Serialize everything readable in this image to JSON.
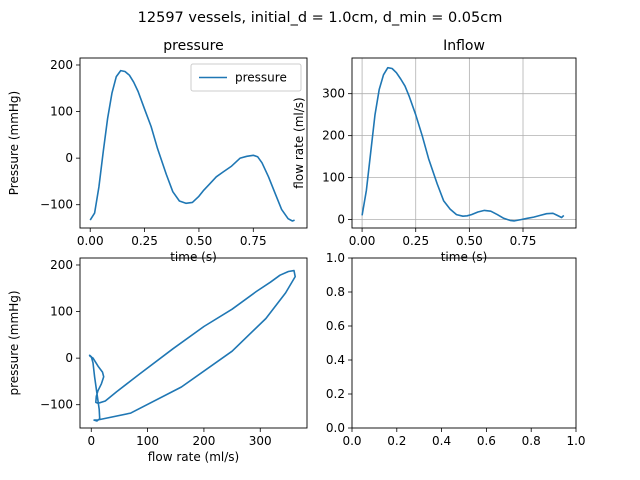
{
  "figure": {
    "suptitle": "12597 vessels, initial_d = 1.0cm, d_min = 0.05cm",
    "line_color": "#1f77b4",
    "grid_color": "#b0b0b0"
  },
  "chart_data": [
    {
      "type": "line",
      "title": "pressure",
      "xlabel": "time (s)",
      "ylabel": "Pressure (mmHg)",
      "xlim": [
        -0.047,
        0.997
      ],
      "ylim": [
        -150,
        215
      ],
      "xticks": [
        0.0,
        0.25,
        0.5,
        0.75
      ],
      "xtick_labels": [
        "0.00",
        "0.25",
        "0.50",
        "0.75"
      ],
      "yticks": [
        -100,
        0,
        100,
        200
      ],
      "ytick_labels": [
        "−100",
        "0",
        "100",
        "200"
      ],
      "grid": false,
      "legend": "upper right",
      "series": [
        {
          "name": "pressure",
          "x": [
            0.0,
            0.02,
            0.04,
            0.06,
            0.08,
            0.1,
            0.12,
            0.14,
            0.16,
            0.18,
            0.2,
            0.22,
            0.25,
            0.28,
            0.31,
            0.35,
            0.38,
            0.41,
            0.44,
            0.47,
            0.5,
            0.52,
            0.55,
            0.58,
            0.61,
            0.65,
            0.69,
            0.72,
            0.75,
            0.77,
            0.79,
            0.82,
            0.85,
            0.88,
            0.91,
            0.93,
            0.94
          ],
          "y": [
            -133,
            -118,
            -62,
            15,
            85,
            140,
            175,
            188,
            186,
            178,
            163,
            143,
            105,
            68,
            20,
            -35,
            -72,
            -92,
            -97,
            -95,
            -82,
            -70,
            -55,
            -40,
            -30,
            -17,
            0,
            4,
            6,
            3,
            -10,
            -40,
            -75,
            -110,
            -130,
            -135,
            -133
          ]
        }
      ]
    },
    {
      "type": "line",
      "title": "Inflow",
      "xlabel": "time (s)",
      "ylabel": "flow rate (ml/s)",
      "xlim": [
        -0.047,
        0.997
      ],
      "ylim": [
        -20,
        385
      ],
      "xticks": [
        0.0,
        0.25,
        0.5,
        0.75
      ],
      "xtick_labels": [
        "0.00",
        "0.25",
        "0.50",
        "0.75"
      ],
      "yticks": [
        0,
        100,
        200,
        300
      ],
      "ytick_labels": [
        "0",
        "100",
        "200",
        "300"
      ],
      "grid": true,
      "series": [
        {
          "name": "",
          "x": [
            0.0,
            0.02,
            0.04,
            0.06,
            0.08,
            0.1,
            0.12,
            0.14,
            0.16,
            0.18,
            0.2,
            0.22,
            0.25,
            0.28,
            0.31,
            0.35,
            0.38,
            0.41,
            0.44,
            0.47,
            0.49,
            0.51,
            0.54,
            0.57,
            0.6,
            0.63,
            0.66,
            0.69,
            0.71,
            0.74,
            0.77,
            0.8,
            0.83,
            0.86,
            0.89,
            0.91,
            0.93,
            0.94
          ],
          "y": [
            10,
            70,
            160,
            250,
            310,
            345,
            362,
            360,
            350,
            335,
            318,
            293,
            250,
            200,
            145,
            85,
            45,
            25,
            12,
            8,
            9,
            12,
            18,
            22,
            20,
            12,
            3,
            -2,
            -3,
            0,
            3,
            6,
            10,
            14,
            15,
            10,
            5,
            10
          ]
        }
      ]
    },
    {
      "type": "line",
      "title": "",
      "xlabel": "flow rate (ml/s)",
      "ylabel": "pressure (mmHg)",
      "xlim": [
        -20,
        383
      ],
      "ylim": [
        -150,
        215
      ],
      "xticks": [
        0,
        100,
        200,
        300
      ],
      "xtick_labels": [
        "0",
        "100",
        "200",
        "300"
      ],
      "yticks": [
        -100,
        0,
        100,
        200
      ],
      "ytick_labels": [
        "−100",
        "0",
        "100",
        "200"
      ],
      "grid": false,
      "series": [
        {
          "name": "",
          "x": [
            10,
            70,
            160,
            250,
            310,
            345,
            362,
            360,
            350,
            335,
            318,
            293,
            250,
            200,
            145,
            85,
            45,
            25,
            12,
            8,
            9,
            12,
            18,
            22,
            20,
            12,
            3,
            -2,
            -3,
            0,
            3,
            6,
            10,
            14,
            15,
            10,
            5,
            10
          ],
          "y": [
            -133,
            -118,
            -62,
            15,
            85,
            140,
            175,
            188,
            186,
            178,
            163,
            143,
            105,
            68,
            20,
            -35,
            -72,
            -92,
            -97,
            -95,
            -82,
            -70,
            -55,
            -40,
            -30,
            -17,
            0,
            4,
            6,
            3,
            -10,
            -40,
            -75,
            -110,
            -130,
            -135,
            -133,
            -133
          ]
        }
      ]
    },
    {
      "type": "line",
      "title": "",
      "xlabel": "",
      "ylabel": "",
      "xlim": [
        0,
        1
      ],
      "ylim": [
        0,
        1
      ],
      "xticks": [
        0.0,
        0.2,
        0.4,
        0.6,
        0.8,
        1.0
      ],
      "xtick_labels": [
        "0.0",
        "0.2",
        "0.4",
        "0.6",
        "0.8",
        "1.0"
      ],
      "yticks": [
        0.0,
        0.2,
        0.4,
        0.6,
        0.8,
        1.0
      ],
      "ytick_labels": [
        "0.0",
        "0.2",
        "0.4",
        "0.6",
        "0.8",
        "1.0"
      ],
      "grid": false,
      "series": []
    }
  ]
}
